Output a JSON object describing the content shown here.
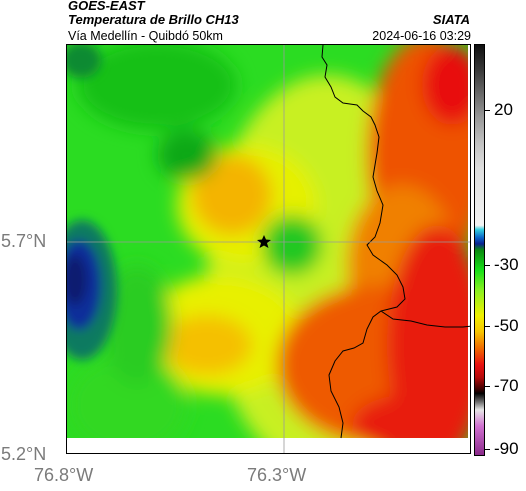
{
  "header": {
    "satellite": "GOES-EAST",
    "product": "Temperatura de Brillo CH13",
    "organization": "SIATA",
    "region": "Vía Medellín - Quibdó 50km",
    "datetime": "2024-06-16 03:29"
  },
  "map": {
    "lat_labels": [
      "5.7°N",
      "5.2°N"
    ],
    "lon_labels": [
      "76.8°W",
      "76.3°W"
    ],
    "marker_icon": "star-icon",
    "gridline_color": "#9a9a9a",
    "boundary_color": "#000000"
  },
  "colorbar": {
    "tick_labels": [
      "20",
      "-30",
      "-50",
      "-70",
      "-90"
    ],
    "palette": {
      "warm": "#e81010",
      "mid": "#f0f000",
      "cool": "#18e018",
      "cold": "#0a2090",
      "very_cold": "#101010"
    }
  }
}
